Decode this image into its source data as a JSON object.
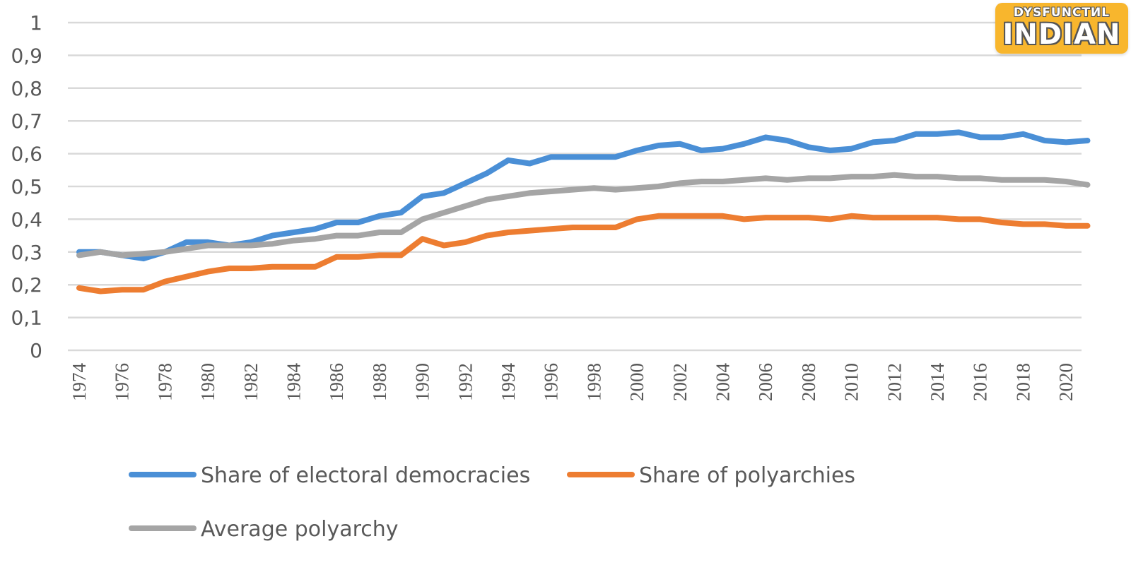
{
  "chart_data": {
    "type": "line",
    "title": "",
    "xlabel": "",
    "ylabel": "",
    "ylim": [
      0,
      1
    ],
    "y_ticks": [
      "0",
      "0,1",
      "0,2",
      "0,3",
      "0,4",
      "0,5",
      "0,6",
      "0,7",
      "0,8",
      "0,9",
      "1"
    ],
    "y_tick_values": [
      0,
      0.1,
      0.2,
      0.3,
      0.4,
      0.5,
      0.6,
      0.7,
      0.8,
      0.9,
      1
    ],
    "grid": true,
    "legend_position": "bottom",
    "x": [
      1974,
      1975,
      1976,
      1977,
      1978,
      1979,
      1980,
      1981,
      1982,
      1983,
      1984,
      1985,
      1986,
      1987,
      1988,
      1989,
      1990,
      1991,
      1992,
      1993,
      1994,
      1995,
      1996,
      1997,
      1998,
      1999,
      2000,
      2001,
      2002,
      2003,
      2004,
      2005,
      2006,
      2007,
      2008,
      2009,
      2010,
      2011,
      2012,
      2013,
      2014,
      2015,
      2016,
      2017,
      2018,
      2019,
      2020,
      2021
    ],
    "x_tick_labels": [
      "1974",
      "1976",
      "1978",
      "1980",
      "1982",
      "1984",
      "1986",
      "1988",
      "1990",
      "1992",
      "1994",
      "1996",
      "1998",
      "2000",
      "2002",
      "2004",
      "2006",
      "2008",
      "2010",
      "2012",
      "2014",
      "2016",
      "2018",
      "2020"
    ],
    "series": [
      {
        "name": "Share of electoral democracies",
        "color": "#4a8fd6",
        "values": [
          0.3,
          0.3,
          0.29,
          0.28,
          0.3,
          0.33,
          0.33,
          0.32,
          0.33,
          0.35,
          0.36,
          0.37,
          0.39,
          0.39,
          0.41,
          0.42,
          0.47,
          0.48,
          0.51,
          0.54,
          0.58,
          0.57,
          0.59,
          0.59,
          0.59,
          0.59,
          0.61,
          0.625,
          0.63,
          0.61,
          0.615,
          0.63,
          0.65,
          0.64,
          0.62,
          0.61,
          0.615,
          0.635,
          0.64,
          0.66,
          0.66,
          0.665,
          0.65,
          0.65,
          0.66,
          0.64,
          0.635,
          0.64
        ]
      },
      {
        "name": "Share of polyarchies",
        "color": "#ed7d31",
        "values": [
          0.19,
          0.18,
          0.185,
          0.185,
          0.21,
          0.225,
          0.24,
          0.25,
          0.25,
          0.255,
          0.255,
          0.255,
          0.285,
          0.285,
          0.29,
          0.29,
          0.34,
          0.32,
          0.33,
          0.35,
          0.36,
          0.365,
          0.37,
          0.375,
          0.375,
          0.375,
          0.4,
          0.41,
          0.41,
          0.41,
          0.41,
          0.4,
          0.405,
          0.405,
          0.405,
          0.4,
          0.41,
          0.405,
          0.405,
          0.405,
          0.405,
          0.4,
          0.4,
          0.39,
          0.385,
          0.385,
          0.38,
          0.38
        ]
      },
      {
        "name": "Average polyarchy",
        "color": "#a5a5a5",
        "values": [
          0.29,
          0.3,
          0.29,
          0.295,
          0.3,
          0.31,
          0.32,
          0.32,
          0.32,
          0.325,
          0.335,
          0.34,
          0.35,
          0.35,
          0.36,
          0.36,
          0.4,
          0.42,
          0.44,
          0.46,
          0.47,
          0.48,
          0.485,
          0.49,
          0.495,
          0.49,
          0.495,
          0.5,
          0.51,
          0.515,
          0.515,
          0.52,
          0.525,
          0.52,
          0.525,
          0.525,
          0.53,
          0.53,
          0.535,
          0.53,
          0.53,
          0.525,
          0.525,
          0.52,
          0.52,
          0.52,
          0.515,
          0.505
        ]
      }
    ]
  },
  "watermark": {
    "top_text": "DYSFUNCTИL",
    "main_text": "INDIAN",
    "color": "#f8b62d"
  }
}
